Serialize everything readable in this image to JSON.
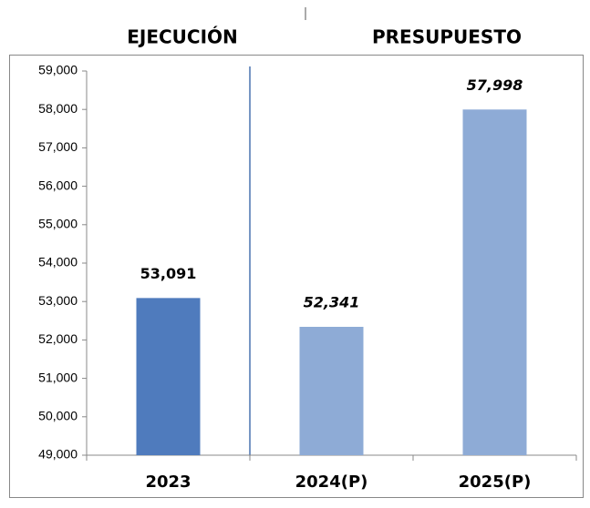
{
  "chart_data": {
    "type": "bar",
    "annotations": [
      "EJECUCIÓN",
      "PRESUPUESTO"
    ],
    "categories": [
      "2023",
      "2024(P)",
      "2025(P)"
    ],
    "values": [
      53091,
      52341,
      57998
    ],
    "value_labels": [
      "53,091",
      "52,341",
      "57,998"
    ],
    "value_label_italic": [
      false,
      true,
      true
    ],
    "colors": [
      "#4f7bbd",
      "#8eabd6",
      "#8eabd6"
    ],
    "ylim": [
      49000,
      59000
    ],
    "yticks": [
      {
        "value": 49000,
        "label": "49,000"
      },
      {
        "value": 50000,
        "label": "50,000"
      },
      {
        "value": 51000,
        "label": "51,000"
      },
      {
        "value": 52000,
        "label": "52,000"
      },
      {
        "value": 53000,
        "label": "53,000"
      },
      {
        "value": 54000,
        "label": "54,000"
      },
      {
        "value": 55000,
        "label": "55,000"
      },
      {
        "value": 56000,
        "label": "56,000"
      },
      {
        "value": 57000,
        "label": "57,000"
      },
      {
        "value": 58000,
        "label": "58,000"
      },
      {
        "value": 59000,
        "label": "59,000"
      }
    ],
    "grid": false
  }
}
